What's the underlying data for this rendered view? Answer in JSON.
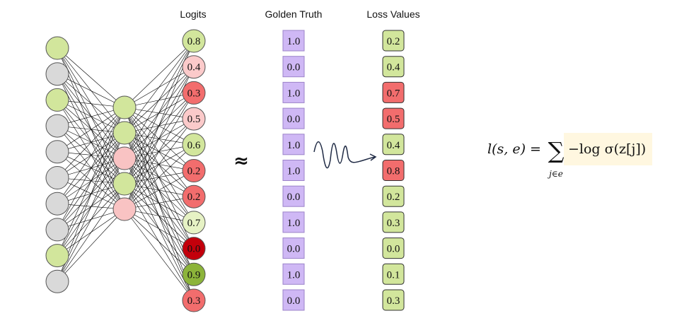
{
  "headers": {
    "logits": "Logits",
    "golden_truth": "Golden Truth",
    "loss_values": "Loss Values"
  },
  "approx_symbol": "≈",
  "network": {
    "input_nodes": [
      "green",
      "gray",
      "green",
      "gray",
      "gray",
      "gray",
      "gray",
      "gray",
      "green",
      "gray"
    ],
    "hidden_nodes": [
      "green",
      "green",
      "pink",
      "green",
      "pink"
    ]
  },
  "logits": [
    {
      "value": "0.8",
      "color": "green"
    },
    {
      "value": "0.4",
      "color": "light-pink"
    },
    {
      "value": "0.3",
      "color": "red"
    },
    {
      "value": "0.5",
      "color": "light-pink"
    },
    {
      "value": "0.6",
      "color": "green"
    },
    {
      "value": "0.2",
      "color": "red"
    },
    {
      "value": "0.2",
      "color": "red"
    },
    {
      "value": "0.7",
      "color": "light-green"
    },
    {
      "value": "0.0",
      "color": "dark-red"
    },
    {
      "value": "0.9",
      "color": "dark-green"
    },
    {
      "value": "0.3",
      "color": "red"
    }
  ],
  "golden_truth": [
    "1.0",
    "0.0",
    "1.0",
    "0.0",
    "1.0",
    "1.0",
    "0.0",
    "1.0",
    "0.0",
    "1.0",
    "0.0"
  ],
  "loss_values": [
    {
      "value": "0.2",
      "color": "green"
    },
    {
      "value": "0.4",
      "color": "green"
    },
    {
      "value": "0.7",
      "color": "red"
    },
    {
      "value": "0.5",
      "color": "red"
    },
    {
      "value": "0.4",
      "color": "green"
    },
    {
      "value": "0.8",
      "color": "red"
    },
    {
      "value": "0.2",
      "color": "green"
    },
    {
      "value": "0.3",
      "color": "green"
    },
    {
      "value": "0.0",
      "color": "green"
    },
    {
      "value": "0.1",
      "color": "green"
    },
    {
      "value": "0.3",
      "color": "green"
    }
  ],
  "formula": {
    "lhs": "l(s, e) =",
    "sum": "∑",
    "subscript": "j∈e",
    "term": "−log σ(z[j])"
  },
  "colors": {
    "green": "#d2e69c",
    "light-green": "#e6f2c4",
    "dark-green": "#8cb43a",
    "gray": "#d9d9d9",
    "pink": "#f9c3c3",
    "light-pink": "#fbcaca",
    "red": "#f26d6d",
    "dark-red": "#c3000b",
    "purple": "#cfb8f5",
    "highlight": "#fff7e0",
    "stroke": "#555555"
  }
}
